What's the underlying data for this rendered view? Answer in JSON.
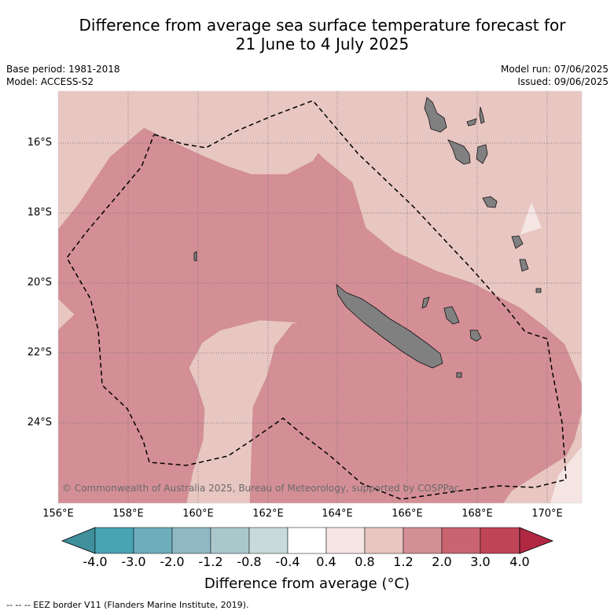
{
  "title": {
    "line1": "Difference from average sea surface temperature forecast for",
    "line2": "21 June to 4 July 2025"
  },
  "meta": {
    "base_period": "Base period: 1981-2018",
    "model": "Model: ACCESS-S2",
    "model_run": "Model run: 07/06/2025",
    "issued": "Issued: 09/06/2025"
  },
  "map": {
    "lat_labels": [
      "16°S",
      "18°S",
      "20°S",
      "22°S",
      "24°S"
    ],
    "lon_labels": [
      "156°E",
      "158°E",
      "160°E",
      "162°E",
      "164°E",
      "166°E",
      "168°E",
      "170°E"
    ],
    "region_colors": {
      "anom_0.4_0.8": "#f5e6e4",
      "anom_0.8_1.2": "#e8c6c1",
      "anom_1.2_2.0": "#d48f96",
      "land": "#808080"
    },
    "copyright": "© Commonwealth of Australia 2025, Bureau of Meteorology, supported by COSPPac"
  },
  "colorbar": {
    "labels": [
      "-4.0",
      "-3.0",
      "-2.0",
      "-1.2",
      "-0.8",
      "-0.4",
      "0.4",
      "0.8",
      "1.2",
      "2.0",
      "3.0",
      "4.0"
    ],
    "colors": [
      "#3f8f9c",
      "#48a3b2",
      "#6eadbc",
      "#8fb8c4",
      "#aac8cc",
      "#c8dadb",
      "#ffffff",
      "#f5e6e4",
      "#e8c6c1",
      "#d48f96",
      "#c96570",
      "#bf4556",
      "#b02842"
    ],
    "title": "Difference from average (°C)"
  },
  "legend": {
    "eez": "--  --  -- EEZ border V11 (Flanders Marine Institute, 2019)."
  }
}
